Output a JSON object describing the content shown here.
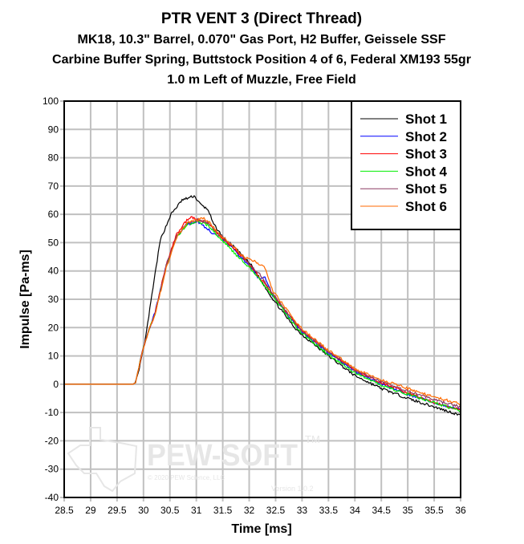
{
  "chart_data": {
    "type": "line",
    "title": "PTR VENT 3 (Direct Thread)",
    "subtitle": [
      "MK18, 10.3\" Barrel, 0.070\" Gas Port, H2 Buffer, Geissele SSF",
      "Carbine Buffer Spring, Buttstock Position 4 of 6, Federal XM193 55gr",
      "1.0 m Left of Muzzle, Free Field"
    ],
    "xlabel": "Time [ms]",
    "ylabel": "Impulse [Pa-ms]",
    "xlim": [
      28.5,
      36
    ],
    "ylim": [
      -40,
      100
    ],
    "xticks": [
      "28.5",
      "29",
      "29.5",
      "30",
      "30.5",
      "31",
      "31.5",
      "32",
      "32.5",
      "33",
      "33.5",
      "34",
      "34.5",
      "35",
      "35.5",
      "36"
    ],
    "yticks": [
      "100",
      "90",
      "80",
      "70",
      "60",
      "50",
      "40",
      "30",
      "20",
      "10",
      "0",
      "-10",
      "-20",
      "-30",
      "-40"
    ],
    "grid": true,
    "legend_position": "top-right",
    "series": [
      {
        "name": "Shot 1",
        "color": "#000000",
        "points": [
          [
            28.5,
            0
          ],
          [
            29.8,
            0
          ],
          [
            29.84,
            0.5
          ],
          [
            29.9,
            4
          ],
          [
            30.02,
            14
          ],
          [
            30.1,
            24
          ],
          [
            30.22,
            39
          ],
          [
            30.32,
            51
          ],
          [
            30.52,
            60
          ],
          [
            30.73,
            65
          ],
          [
            30.96,
            66.5
          ],
          [
            31.08,
            63.5
          ],
          [
            31.23,
            61.5
          ],
          [
            31.31,
            57
          ],
          [
            31.5,
            52
          ],
          [
            31.74,
            48
          ],
          [
            32.04,
            42
          ],
          [
            32.45,
            30
          ],
          [
            32.86,
            20
          ],
          [
            33.0,
            17.5
          ],
          [
            33.5,
            10
          ],
          [
            34.0,
            3
          ],
          [
            34.5,
            -1.5
          ],
          [
            35.0,
            -5
          ],
          [
            35.5,
            -8
          ],
          [
            36.0,
            -11
          ]
        ]
      },
      {
        "name": "Shot 2",
        "color": "#0000ff",
        "points": [
          [
            28.5,
            0
          ],
          [
            29.8,
            0
          ],
          [
            29.85,
            0.5
          ],
          [
            29.91,
            6
          ],
          [
            30.0,
            13
          ],
          [
            30.1,
            19
          ],
          [
            30.22,
            25.5
          ],
          [
            30.43,
            42
          ],
          [
            30.63,
            52.5
          ],
          [
            30.82,
            56.5
          ],
          [
            31.03,
            57.5
          ],
          [
            31.2,
            55
          ],
          [
            31.3,
            53.5
          ],
          [
            31.43,
            52.5
          ],
          [
            31.74,
            47
          ],
          [
            32.04,
            41
          ],
          [
            32.2,
            37
          ],
          [
            32.3,
            38
          ],
          [
            32.45,
            31
          ],
          [
            32.86,
            21.5
          ],
          [
            33.0,
            18.5
          ],
          [
            33.5,
            11
          ],
          [
            34.0,
            4.5
          ],
          [
            34.5,
            0
          ],
          [
            35.0,
            -3.5
          ],
          [
            35.5,
            -6.5
          ],
          [
            36.0,
            -9
          ]
        ]
      },
      {
        "name": "Shot 3",
        "color": "#ff0000",
        "points": [
          [
            28.5,
            0
          ],
          [
            29.8,
            0
          ],
          [
            29.85,
            0.5
          ],
          [
            29.91,
            6
          ],
          [
            30.0,
            13
          ],
          [
            30.1,
            19
          ],
          [
            30.22,
            25
          ],
          [
            30.43,
            42.5
          ],
          [
            30.63,
            53
          ],
          [
            30.82,
            58
          ],
          [
            30.9,
            59
          ],
          [
            31.03,
            58
          ],
          [
            31.23,
            57
          ],
          [
            31.43,
            52.5
          ],
          [
            31.74,
            47.5
          ],
          [
            32.04,
            41.5
          ],
          [
            32.45,
            31.5
          ],
          [
            32.86,
            22
          ],
          [
            33.0,
            19
          ],
          [
            33.5,
            11.5
          ],
          [
            34.0,
            5
          ],
          [
            34.5,
            0.5
          ],
          [
            35.0,
            -3
          ],
          [
            35.5,
            -6.5
          ],
          [
            36.0,
            -9
          ]
        ]
      },
      {
        "name": "Shot 4",
        "color": "#00ee00",
        "points": [
          [
            28.5,
            0
          ],
          [
            29.8,
            0
          ],
          [
            29.85,
            0.5
          ],
          [
            29.91,
            6
          ],
          [
            30.0,
            13
          ],
          [
            30.1,
            19
          ],
          [
            30.22,
            25
          ],
          [
            30.43,
            41.5
          ],
          [
            30.63,
            52
          ],
          [
            30.82,
            56.5
          ],
          [
            31.03,
            57.5
          ],
          [
            31.23,
            56
          ],
          [
            31.43,
            52
          ],
          [
            31.74,
            46
          ],
          [
            32.04,
            40.5
          ],
          [
            32.45,
            31
          ],
          [
            32.86,
            21
          ],
          [
            33.0,
            18
          ],
          [
            33.5,
            10.5
          ],
          [
            34.0,
            4
          ],
          [
            34.5,
            -0.5
          ],
          [
            35.0,
            -3.5
          ],
          [
            35.5,
            -6.5
          ],
          [
            36.0,
            -9.5
          ]
        ]
      },
      {
        "name": "Shot 5",
        "color": "#8b3a62",
        "points": [
          [
            28.5,
            0
          ],
          [
            29.8,
            0
          ],
          [
            29.85,
            0.5
          ],
          [
            29.91,
            6
          ],
          [
            30.0,
            13
          ],
          [
            30.1,
            19
          ],
          [
            30.22,
            25
          ],
          [
            30.43,
            42
          ],
          [
            30.63,
            52.5
          ],
          [
            30.82,
            57
          ],
          [
            31.03,
            58
          ],
          [
            31.23,
            57
          ],
          [
            31.43,
            53
          ],
          [
            31.74,
            48
          ],
          [
            32.04,
            41.5
          ],
          [
            32.2,
            39
          ],
          [
            32.45,
            32
          ],
          [
            32.86,
            22
          ],
          [
            33.0,
            19
          ],
          [
            33.5,
            11.5
          ],
          [
            34.0,
            5
          ],
          [
            34.5,
            1
          ],
          [
            35.0,
            -2.5
          ],
          [
            35.5,
            -5.5
          ],
          [
            36.0,
            -8
          ]
        ]
      },
      {
        "name": "Shot 6",
        "color": "#ff6a00",
        "points": [
          [
            28.5,
            0
          ],
          [
            29.8,
            0
          ],
          [
            29.85,
            0.5
          ],
          [
            29.91,
            6
          ],
          [
            30.0,
            13
          ],
          [
            30.1,
            19
          ],
          [
            30.22,
            24.5
          ],
          [
            30.43,
            41
          ],
          [
            30.63,
            52
          ],
          [
            30.82,
            57
          ],
          [
            31.03,
            58
          ],
          [
            31.1,
            59
          ],
          [
            31.23,
            57.5
          ],
          [
            31.43,
            53
          ],
          [
            31.74,
            48
          ],
          [
            31.9,
            45
          ],
          [
            32.1,
            43.5
          ],
          [
            32.3,
            41
          ],
          [
            32.45,
            33
          ],
          [
            32.86,
            22.5
          ],
          [
            33.0,
            19.5
          ],
          [
            33.5,
            12
          ],
          [
            34.0,
            5.5
          ],
          [
            34.5,
            1.5
          ],
          [
            35.0,
            -1.5
          ],
          [
            35.5,
            -4.5
          ],
          [
            36.0,
            -7
          ]
        ]
      }
    ]
  },
  "watermark": {
    "brand": "PEW-SOFT",
    "trademark": "TM",
    "copyright": "© 2020 PEW Science, LLC",
    "version": "Version 1.0.2"
  }
}
